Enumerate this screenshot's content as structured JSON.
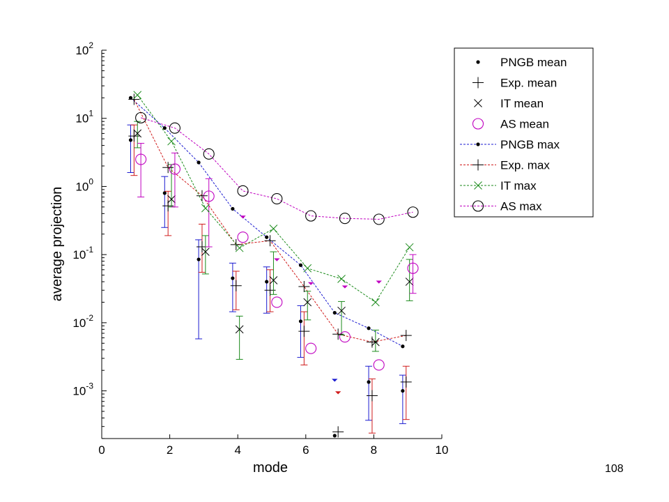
{
  "page_number": "108",
  "chart_data": {
    "type": "scatter",
    "xlabel": "mode",
    "ylabel": "average projection",
    "xlim": [
      0,
      10
    ],
    "ylim_log10": [
      -3.7,
      2
    ],
    "yscale": "log",
    "x_ticks": [
      "0",
      "2",
      "4",
      "6",
      "8",
      "10"
    ],
    "y_ticks": [
      {
        "base": "10",
        "exp": "2"
      },
      {
        "base": "10",
        "exp": "1"
      },
      {
        "base": "10",
        "exp": "0"
      },
      {
        "base": "10",
        "exp": "-1"
      },
      {
        "base": "10",
        "exp": "-2"
      },
      {
        "base": "10",
        "exp": "-3"
      }
    ],
    "grid": false,
    "legend_position": "top-right",
    "colors": {
      "pngb": "#1a1ad0",
      "exp": "#d01a1a",
      "it": "#1a8a1a",
      "as": "#c000c0",
      "point": "#000000"
    },
    "mean_series": [
      {
        "name": "PNGB mean",
        "key": "pngb",
        "marker": "dot",
        "x": [
          0.85,
          1.85,
          2.85,
          3.85,
          4.85,
          5.85,
          6.85,
          7.85,
          8.85
        ],
        "y": [
          4.8,
          0.8,
          0.085,
          0.045,
          0.04,
          0.0105,
          0.00022,
          0.00135,
          0.001
        ],
        "low": [
          1.6,
          0.25,
          0.0058,
          0.0145,
          0.0138,
          0.0031,
          null,
          0.00037,
          0.00033
        ],
        "high": [
          8.0,
          1.4,
          0.165,
          0.075,
          0.066,
          0.0178,
          null,
          0.0023,
          0.0017
        ]
      },
      {
        "name": "Exp. mean",
        "key": "exp",
        "marker": "plus",
        "x": [
          0.95,
          1.95,
          2.95,
          3.95,
          4.95,
          5.95,
          6.95,
          7.95,
          8.95
        ],
        "y": [
          5.5,
          0.52,
          0.13,
          0.035,
          0.03,
          0.0075,
          0.00025,
          0.00085,
          0.00135
        ],
        "low": [
          1.45,
          0.19,
          0.055,
          0.0155,
          0.0145,
          0.0024,
          null,
          0.00024,
          0.00038
        ],
        "high": [
          8.0,
          0.85,
          0.28,
          0.057,
          0.06,
          0.0145,
          null,
          0.0015,
          0.0023
        ]
      },
      {
        "name": "IT mean",
        "key": "it",
        "marker": "cross",
        "x": [
          1.05,
          2.05,
          3.05,
          4.05,
          5.05,
          6.05,
          7.05,
          8.05,
          9.05
        ],
        "y": [
          6.0,
          0.65,
          0.11,
          0.008,
          0.042,
          0.02,
          0.015,
          0.0052,
          0.04
        ],
        "low": [
          3.7,
          0.5,
          0.052,
          0.0029,
          0.026,
          0.011,
          0.0066,
          0.0038,
          0.021
        ],
        "high": [
          9.0,
          2.1,
          0.19,
          0.0125,
          0.11,
          0.029,
          0.0205,
          0.0078,
          0.085
        ]
      },
      {
        "name": "AS mean",
        "key": "as",
        "marker": "circle",
        "x": [
          1.15,
          2.15,
          3.15,
          4.15,
          5.15,
          6.15,
          7.15,
          8.15,
          9.15
        ],
        "y": [
          2.5,
          1.8,
          0.72,
          0.18,
          0.02,
          0.0042,
          0.0062,
          0.0024,
          0.063
        ],
        "low": [
          0.7,
          0.5,
          0.13,
          null,
          null,
          null,
          null,
          null,
          0.027
        ],
        "high": [
          4.3,
          3.1,
          1.3,
          null,
          null,
          null,
          null,
          null,
          0.1
        ]
      }
    ],
    "max_series": [
      {
        "name": "PNGB max",
        "key": "pngb",
        "marker": "dot",
        "x": [
          0.85,
          1.85,
          2.85,
          3.85,
          4.85,
          5.85,
          6.85,
          7.85,
          8.85
        ],
        "y": [
          20,
          7.2,
          2.25,
          0.47,
          0.18,
          0.07,
          0.014,
          0.0083,
          0.0045
        ]
      },
      {
        "name": "Exp. max",
        "key": "exp",
        "marker": "plus",
        "x": [
          0.95,
          1.95,
          2.95,
          3.95,
          4.95,
          5.95,
          6.95,
          7.95,
          8.95
        ],
        "y": [
          19,
          1.9,
          0.73,
          0.14,
          0.16,
          0.034,
          0.0068,
          0.0052,
          0.0065
        ]
      },
      {
        "name": "IT max",
        "key": "it",
        "marker": "cross",
        "x": [
          1.05,
          2.05,
          3.05,
          4.05,
          5.05,
          6.05,
          7.05,
          8.05,
          9.05
        ],
        "y": [
          22,
          4.6,
          0.48,
          0.125,
          0.24,
          0.063,
          0.044,
          0.02,
          0.128
        ]
      },
      {
        "name": "AS max",
        "key": "as",
        "marker": "circle",
        "x": [
          1.15,
          2.15,
          3.15,
          4.15,
          5.15,
          6.15,
          7.15,
          8.15,
          9.15
        ],
        "y": [
          10.2,
          7.2,
          3.0,
          0.86,
          0.66,
          0.37,
          0.34,
          0.33,
          0.42
        ]
      }
    ],
    "small_marks": [
      {
        "key": "as",
        "x": [
          4.15,
          5.15,
          6.15,
          7.15,
          8.15
        ],
        "y": [
          0.36,
          0.085,
          0.038,
          0.034,
          0.04
        ]
      },
      {
        "key": "pngb",
        "x": [
          6.85
        ],
        "y": [
          0.00145
        ]
      },
      {
        "key": "exp",
        "x": [
          6.95
        ],
        "y": [
          0.00095
        ]
      }
    ],
    "legend": [
      {
        "label": "PNGB mean",
        "marker": "dot",
        "line": false,
        "key": "point"
      },
      {
        "label": "Exp. mean",
        "marker": "plus",
        "line": false,
        "key": "point"
      },
      {
        "label": "IT mean",
        "marker": "cross",
        "line": false,
        "key": "point"
      },
      {
        "label": "AS mean",
        "marker": "circle",
        "line": false,
        "key": "as"
      },
      {
        "label": "PNGB max",
        "marker": "dot",
        "line": true,
        "key": "pngb"
      },
      {
        "label": "Exp. max",
        "marker": "plus",
        "line": true,
        "key": "exp"
      },
      {
        "label": "IT max",
        "marker": "cross",
        "line": true,
        "key": "it"
      },
      {
        "label": "AS max",
        "marker": "circle",
        "line": true,
        "key": "as"
      }
    ]
  }
}
